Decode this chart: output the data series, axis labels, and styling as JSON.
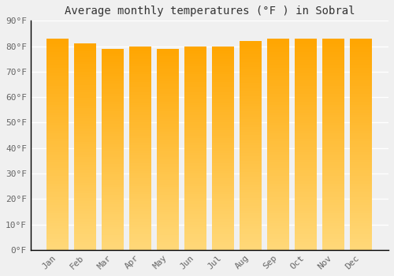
{
  "title": "Average monthly temperatures (°F ) in Sobral",
  "months": [
    "Jan",
    "Feb",
    "Mar",
    "Apr",
    "May",
    "Jun",
    "Jul",
    "Aug",
    "Sep",
    "Oct",
    "Nov",
    "Dec"
  ],
  "values": [
    83,
    81,
    79,
    80,
    79,
    80,
    80,
    82,
    83,
    83,
    83,
    83
  ],
  "bar_color_top": "#FFA500",
  "bar_color_bottom": "#FFD878",
  "background_color": "#f0f0f0",
  "ylim": [
    0,
    90
  ],
  "ytick_step": 10,
  "title_fontsize": 10,
  "tick_fontsize": 8,
  "grid_color": "#ffffff",
  "bar_edge_color": "#D48000",
  "bar_width": 0.8
}
